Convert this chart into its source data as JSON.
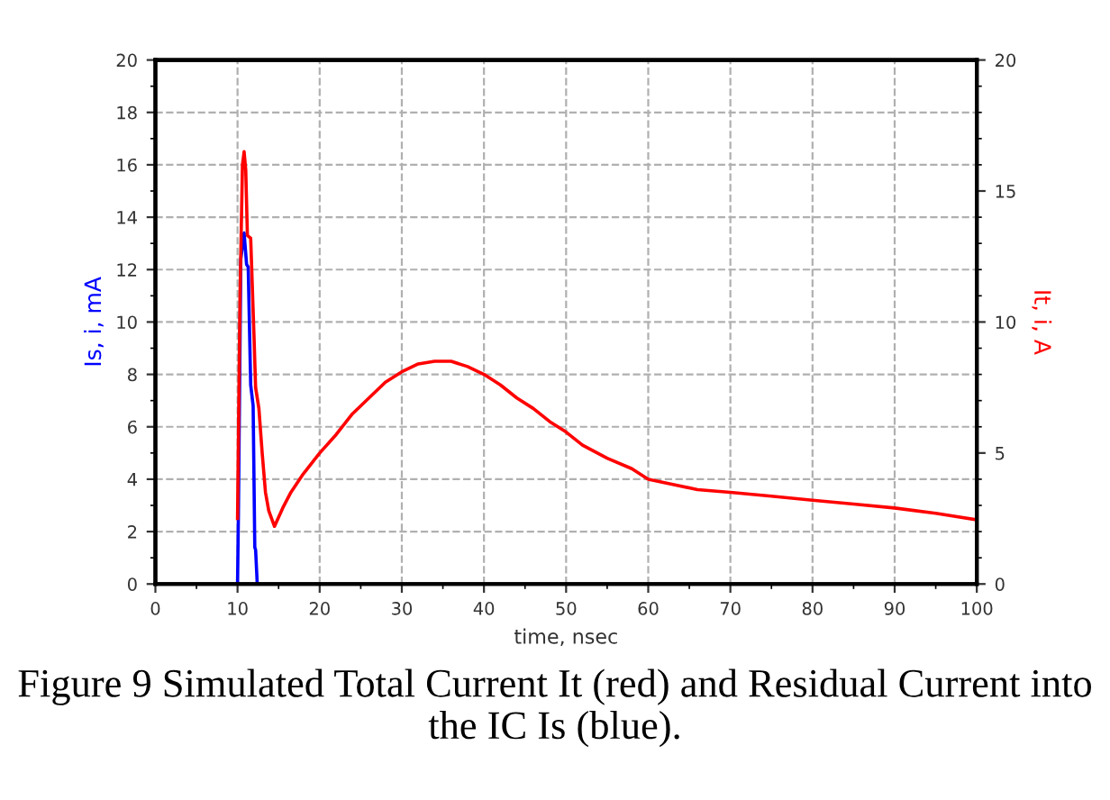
{
  "chart_data": {
    "type": "line",
    "xlabel": "time, nsec",
    "ylabel": "Is, i, mA",
    "y2label": "It, i, A",
    "annotations": [
      "Figure 9 Simulated Total Current It (red) and Residual Current into the IC Is (blue)."
    ],
    "xlim": [
      0,
      100
    ],
    "xticks": [
      0,
      10,
      20,
      30,
      40,
      50,
      60,
      70,
      80,
      90,
      100
    ],
    "ylim": [
      0,
      20
    ],
    "yticks": [
      0,
      2,
      4,
      6,
      8,
      10,
      12,
      14,
      16,
      18,
      20
    ],
    "y2lim": [
      0,
      20
    ],
    "y2ticks": [
      0,
      5,
      10,
      15,
      20
    ],
    "grid": true,
    "marker": "none",
    "line_style": "solid",
    "series": [
      {
        "color": "#ff0000",
        "axis": "y2",
        "x": [
          10,
          10.3,
          10.6,
          10.8,
          11,
          11.2,
          11.6,
          12,
          12.2,
          12.6,
          13,
          13.4,
          13.8,
          14.5,
          15.5,
          16.5,
          18,
          20,
          22,
          24,
          26,
          28,
          30,
          32,
          34,
          36,
          38,
          40,
          42,
          44,
          46,
          48,
          50,
          52,
          55,
          58,
          60,
          63,
          66,
          70,
          75,
          80,
          85,
          90,
          95,
          100
        ],
        "values": [
          2.5,
          11,
          16,
          16.5,
          15.8,
          13.3,
          13.2,
          9.5,
          7.5,
          6.7,
          5,
          3.5,
          2.8,
          2.2,
          2.9,
          3.5,
          4.2,
          5,
          5.7,
          6.5,
          7.1,
          7.7,
          8.1,
          8.4,
          8.5,
          8.5,
          8.3,
          8,
          7.6,
          7.1,
          6.7,
          6.2,
          5.8,
          5.3,
          4.8,
          4.4,
          4,
          3.8,
          3.6,
          3.5,
          3.35,
          3.2,
          3.05,
          2.9,
          2.7,
          2.45
        ]
      },
      {
        "color": "#0000ff",
        "axis": "y",
        "x": [
          10,
          10.1,
          10.4,
          10.8,
          11.1,
          11.3,
          11.6,
          11.9,
          12.1,
          12.2,
          12.4
        ],
        "values": [
          0,
          2.5,
          12.4,
          13.4,
          12.2,
          12.1,
          7.6,
          6.8,
          1.4,
          1.3,
          0
        ]
      }
    ]
  }
}
